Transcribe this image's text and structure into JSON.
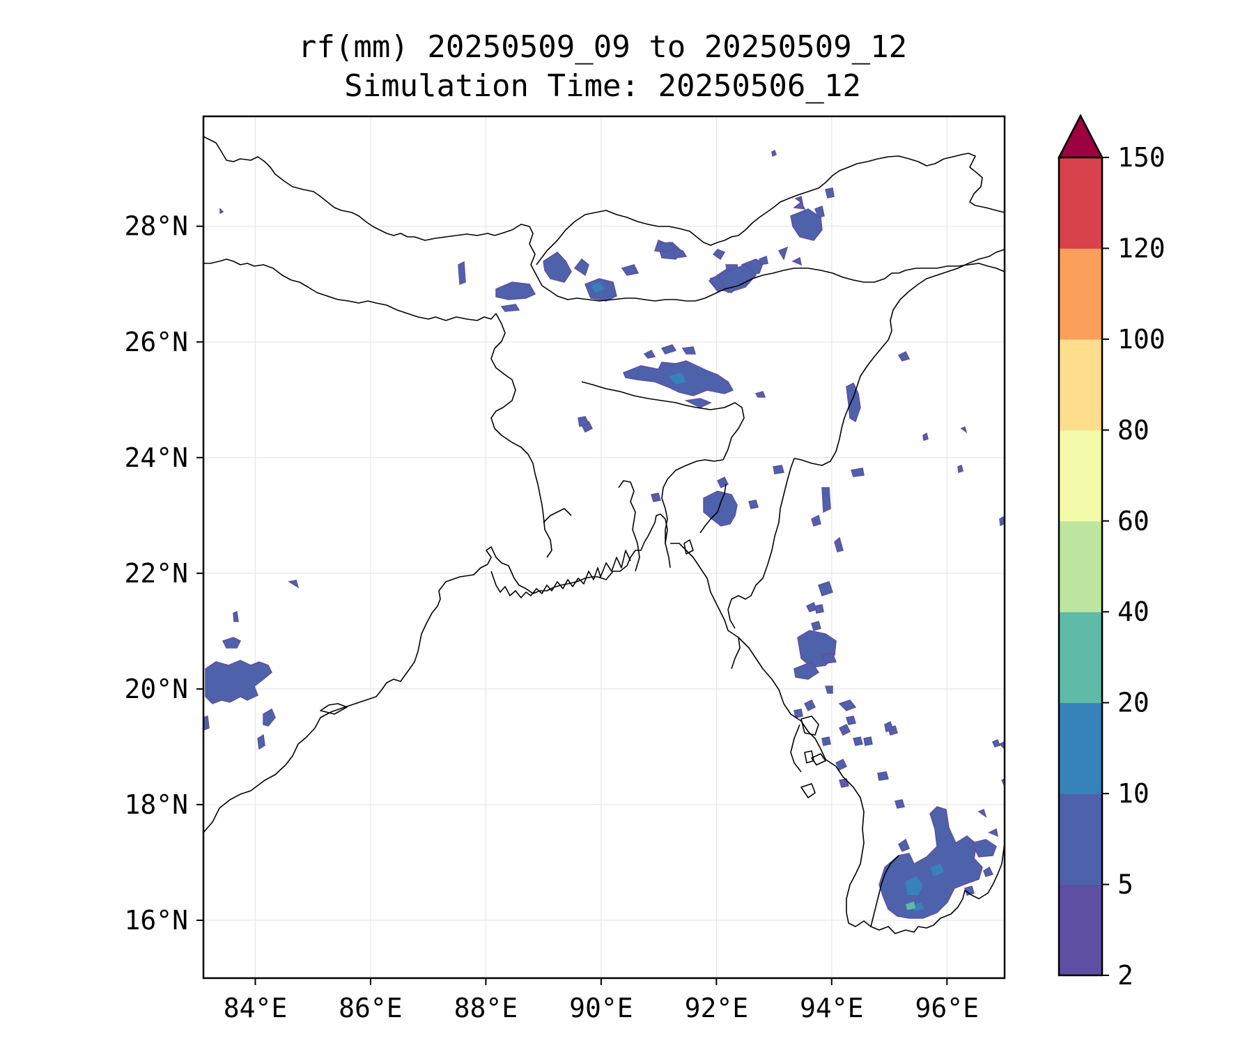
{
  "title": {
    "line1": "rf(mm) 20250509_09 to 20250509_12",
    "line2": "Simulation Time: 20250506_12"
  },
  "map": {
    "extent": {
      "lon_min": 83.1,
      "lon_max": 97.0,
      "lat_min": 15.0,
      "lat_max": 29.9
    },
    "lon_ticks": [
      84,
      86,
      88,
      90,
      92,
      94,
      96
    ],
    "lat_ticks": [
      16,
      18,
      20,
      22,
      24,
      26,
      28
    ],
    "lon_tick_labels": [
      "84°E",
      "86°E",
      "88°E",
      "90°E",
      "92°E",
      "94°E",
      "96°E"
    ],
    "lat_tick_labels": [
      "16°N",
      "18°N",
      "20°N",
      "22°N",
      "24°N",
      "26°N",
      "28°N"
    ],
    "gridlines": true,
    "projection": "PlateCarree"
  },
  "colorbar": {
    "levels": [
      2,
      5,
      10,
      20,
      40,
      60,
      80,
      100,
      120,
      150
    ],
    "tick_labels": [
      "2",
      "5",
      "10",
      "20",
      "40",
      "60",
      "80",
      "100",
      "120",
      "150"
    ],
    "colors": [
      "#5e4fa2",
      "#4e62ab",
      "#3682ba",
      "#5fbaa8",
      "#bee5a0",
      "#f4fba9",
      "#fedd8d",
      "#fba05b",
      "#d7424c"
    ],
    "extend_color": "#9e0142",
    "extend": "max"
  },
  "chart_data": {
    "type": "heatmap",
    "variable": "rf(mm)",
    "units": "mm",
    "regions": [
      {
        "lon": 88.7,
        "lat": 27.05,
        "max_bin": "5-10"
      },
      {
        "lon": 89.3,
        "lat": 27.1,
        "max_bin": "5-10"
      },
      {
        "lon": 90.0,
        "lat": 26.9,
        "max_bin": "5-10"
      },
      {
        "lon": 91.0,
        "lat": 27.4,
        "max_bin": "5-10"
      },
      {
        "lon": 92.3,
        "lat": 27.2,
        "max_bin": "5-10"
      },
      {
        "lon": 93.6,
        "lat": 28.0,
        "max_bin": "5-10"
      },
      {
        "lon": 91.6,
        "lat": 25.6,
        "max_bin": "5-10"
      },
      {
        "lon": 90.9,
        "lat": 25.6,
        "max_bin": "5-10"
      },
      {
        "lon": 92.1,
        "lat": 23.2,
        "max_bin": "5-10"
      },
      {
        "lon": 84.0,
        "lat": 20.1,
        "max_bin": "5-10"
      },
      {
        "lon": 94.0,
        "lat": 21.4,
        "max_bin": "5-10"
      },
      {
        "lon": 93.9,
        "lat": 20.9,
        "max_bin": "5-10"
      },
      {
        "lon": 94.4,
        "lat": 18.9,
        "max_bin": "5-10"
      },
      {
        "lon": 95.6,
        "lat": 16.7,
        "max_bin": "10-20"
      },
      {
        "lon": 95.3,
        "lat": 16.3,
        "max_bin": "20-40"
      }
    ]
  }
}
